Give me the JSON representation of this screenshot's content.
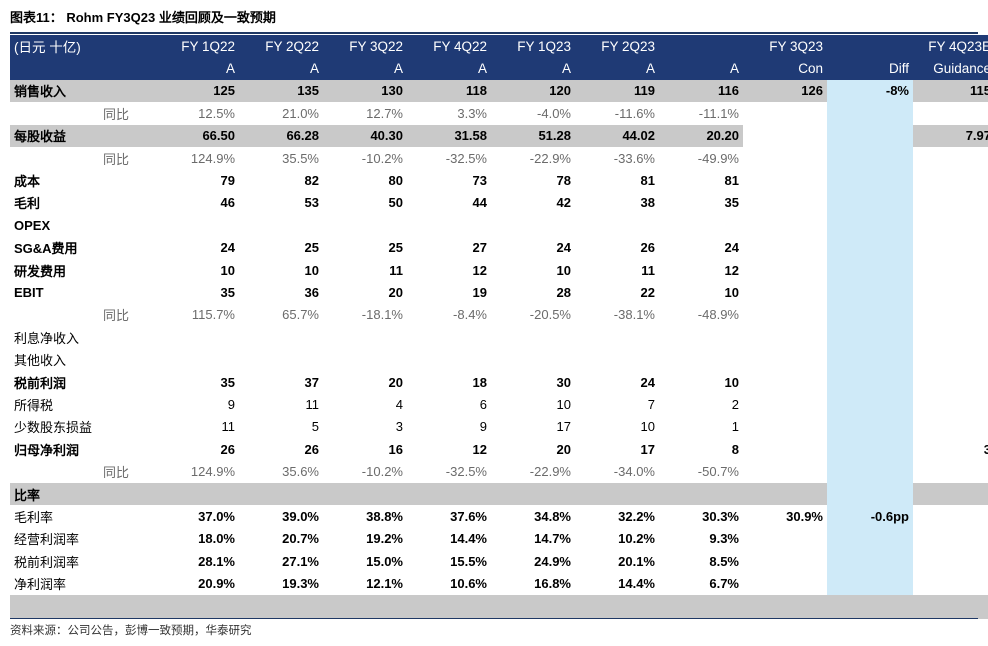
{
  "title": "图表11： Rohm FY3Q23 业绩回顾及一致预期",
  "header": {
    "unit": "(日元 十亿)",
    "row1": [
      "FY 1Q22",
      "FY 2Q22",
      "FY 3Q22",
      "FY 4Q22",
      "FY 1Q23",
      "FY 2Q23",
      "",
      "FY 3Q23",
      "",
      "FY 4Q23E"
    ],
    "row2": [
      "A",
      "A",
      "A",
      "A",
      "A",
      "A",
      "A",
      "Con",
      "Diff",
      "Guidance"
    ]
  },
  "rows": [
    {
      "label": "销售收入",
      "style": "bold grey",
      "values": [
        "125",
        "135",
        "130",
        "118",
        "120",
        "119",
        "116",
        "126",
        "-8%",
        "115"
      ]
    },
    {
      "label": "同比",
      "style": "sub",
      "values": [
        "12.5%",
        "21.0%",
        "12.7%",
        "3.3%",
        "-4.0%",
        "-11.6%",
        "-11.1%",
        "",
        "",
        ""
      ]
    },
    {
      "label": "每股收益",
      "style": "bold grey",
      "values": [
        "66.50",
        "66.28",
        "40.30",
        "31.58",
        "51.28",
        "44.02",
        "20.20",
        "",
        "",
        "7.97"
      ]
    },
    {
      "label": "同比",
      "style": "sub",
      "values": [
        "124.9%",
        "35.5%",
        "-10.2%",
        "-32.5%",
        "-22.9%",
        "-33.6%",
        "-49.9%",
        "",
        "",
        ""
      ]
    },
    {
      "label": "成本",
      "style": "bold",
      "values": [
        "79",
        "82",
        "80",
        "73",
        "78",
        "81",
        "81",
        "",
        "",
        ""
      ]
    },
    {
      "label": "毛利",
      "style": "bold",
      "values": [
        "46",
        "53",
        "50",
        "44",
        "42",
        "38",
        "35",
        "",
        "",
        ""
      ]
    },
    {
      "label": "OPEX",
      "style": "bold",
      "values": [
        "",
        "",
        "",
        "",
        "",
        "",
        "",
        "",
        "",
        ""
      ]
    },
    {
      "label": "SG&A费用",
      "style": "bold",
      "values": [
        "24",
        "25",
        "25",
        "27",
        "24",
        "26",
        "24",
        "",
        "",
        ""
      ]
    },
    {
      "label": "研发费用",
      "style": "bold",
      "values": [
        "10",
        "10",
        "11",
        "12",
        "10",
        "11",
        "12",
        "",
        "",
        ""
      ]
    },
    {
      "label": "EBIT",
      "style": "bold",
      "values": [
        "35",
        "36",
        "20",
        "19",
        "28",
        "22",
        "10",
        "",
        "",
        ""
      ]
    },
    {
      "label": "同比",
      "style": "sub",
      "values": [
        "115.7%",
        "65.7%",
        "-18.1%",
        "-8.4%",
        "-20.5%",
        "-38.1%",
        "-48.9%",
        "",
        "",
        ""
      ]
    },
    {
      "label": "利息净收入",
      "style": "plain",
      "values": [
        "",
        "",
        "",
        "",
        "",
        "",
        "",
        "",
        "",
        ""
      ]
    },
    {
      "label": "其他收入",
      "style": "plain",
      "values": [
        "",
        "",
        "",
        "",
        "",
        "",
        "",
        "",
        "",
        ""
      ]
    },
    {
      "label": "税前利润",
      "style": "bold",
      "values": [
        "35",
        "37",
        "20",
        "18",
        "30",
        "24",
        "10",
        "",
        "",
        ""
      ]
    },
    {
      "label": "所得税",
      "style": "plain",
      "values": [
        "9",
        "11",
        "4",
        "6",
        "10",
        "7",
        "2",
        "",
        "",
        ""
      ]
    },
    {
      "label": "少数股东损益",
      "style": "plain",
      "values": [
        "11",
        "5",
        "3",
        "9",
        "17",
        "10",
        "1",
        "",
        "",
        ""
      ]
    },
    {
      "label": "归母净利润",
      "style": "bold",
      "values": [
        "26",
        "26",
        "16",
        "12",
        "20",
        "17",
        "8",
        "",
        "",
        "3"
      ]
    },
    {
      "label": "同比",
      "style": "sub",
      "values": [
        "124.9%",
        "35.6%",
        "-10.2%",
        "-32.5%",
        "-22.9%",
        "-34.0%",
        "-50.7%",
        "",
        "",
        ""
      ]
    }
  ],
  "ratio_section": {
    "label": "比率"
  },
  "ratio_rows": [
    {
      "label": "毛利率",
      "values": [
        "37.0%",
        "39.0%",
        "38.8%",
        "37.6%",
        "34.8%",
        "32.2%",
        "30.3%",
        "30.9%",
        "-0.6pp",
        ""
      ]
    },
    {
      "label": "经营利润率",
      "values": [
        "18.0%",
        "20.7%",
        "19.2%",
        "14.4%",
        "14.7%",
        "10.2%",
        "9.3%",
        "",
        "",
        ""
      ]
    },
    {
      "label": "税前利润率",
      "values": [
        "28.1%",
        "27.1%",
        "15.0%",
        "15.5%",
        "24.9%",
        "20.1%",
        "8.5%",
        "",
        "",
        ""
      ]
    },
    {
      "label": "净利润率",
      "values": [
        "20.9%",
        "19.3%",
        "12.1%",
        "10.6%",
        "16.8%",
        "14.4%",
        "6.7%",
        "",
        "",
        ""
      ]
    }
  ],
  "source": "资料来源：公司公告，彭博一致预期，华泰研究"
}
